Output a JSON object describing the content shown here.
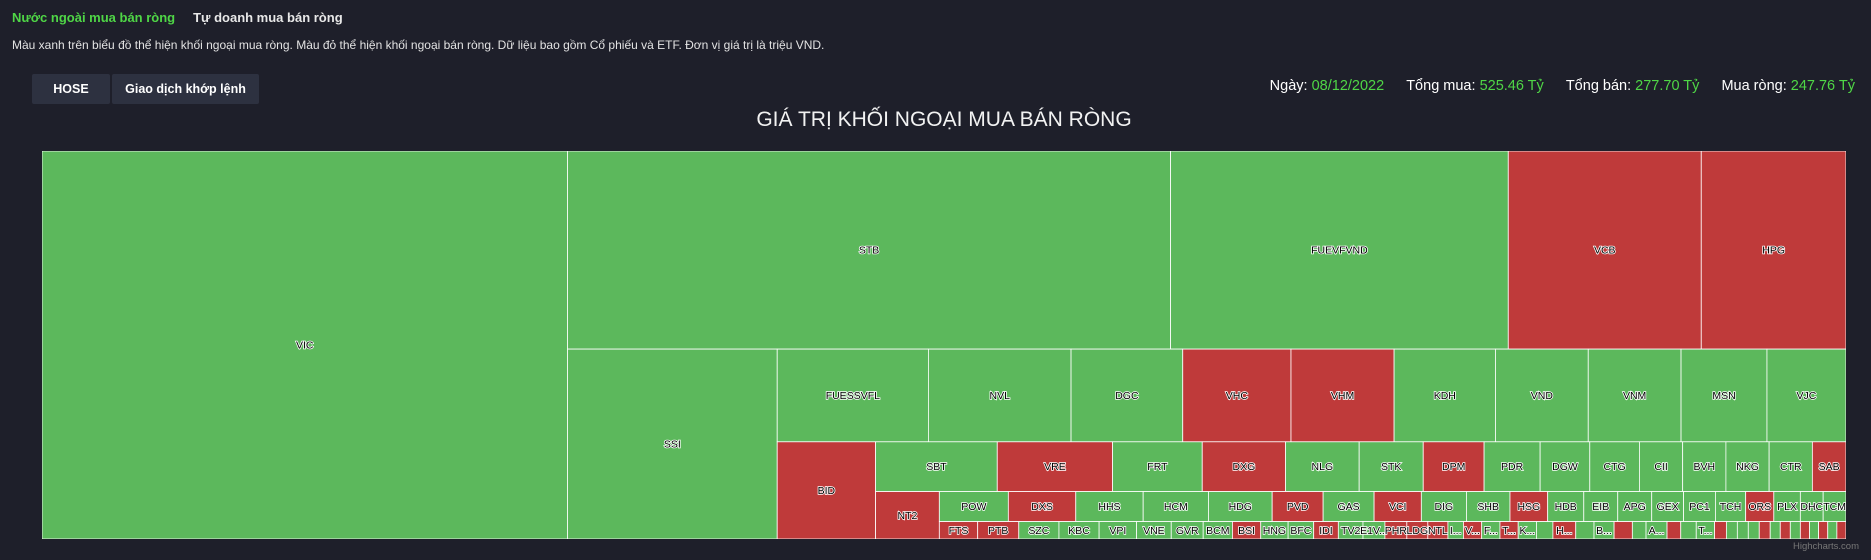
{
  "tabs": [
    "Nước ngoài mua bán ròng",
    "Tự doanh mua bán ròng"
  ],
  "description": "Màu xanh trên biểu đồ thể hiện khối ngoại mua ròng. Màu đỏ thể hiện khối ngoại bán ròng. Dữ liệu bao gồm Cổ phiếu và ETF. Đơn vị giá trị là triệu VND.",
  "buttons": {
    "exchange": "HOSE",
    "type": "Giao dịch khớp lệnh"
  },
  "stats": {
    "date_label": "Ngày:",
    "date": "08/12/2022",
    "buy_label": "Tổng mua:",
    "buy": "525.46 Tỷ",
    "sell_label": "Tổng bán:",
    "sell": "277.70 Tỷ",
    "net_label": "Mua ròng:",
    "net": "247.76 Tỷ"
  },
  "credit": "Highcharts.com",
  "colors": {
    "buy": "#5cb85c",
    "sell": "#bf3a3a"
  },
  "chart_data": {
    "type": "treemap",
    "title": "GIÁ TRỊ KHỐI NGOẠI MUA BÁN RÒNG",
    "groups": [
      {
        "items": [
          {
            "name": "VIC",
            "value": 128,
            "side": "buy"
          }
        ]
      },
      {
        "items": [
          {
            "name": "STB",
            "value": 75,
            "side": "buy"
          },
          {
            "name": "FUEVFVND",
            "value": 42,
            "side": "buy"
          },
          {
            "name": "VCB",
            "value": 24,
            "side": "sell"
          },
          {
            "name": "HPG",
            "value": 18,
            "side": "sell"
          }
        ]
      },
      {
        "items": [
          {
            "name": "SSI",
            "value": 25,
            "side": "buy"
          }
        ]
      },
      {
        "items": [
          {
            "name": "FUESSVFL",
            "value": 8.8,
            "side": "buy"
          },
          {
            "name": "NVL",
            "value": 8.3,
            "side": "buy"
          },
          {
            "name": "DGC",
            "value": 6.5,
            "side": "buy"
          },
          {
            "name": "VHC",
            "value": 6.3,
            "side": "sell"
          },
          {
            "name": "VHM",
            "value": 6.0,
            "side": "sell"
          },
          {
            "name": "KDH",
            "value": 5.9,
            "side": "buy"
          },
          {
            "name": "VND",
            "value": 5.4,
            "side": "buy"
          },
          {
            "name": "VNM",
            "value": 5.4,
            "side": "buy"
          },
          {
            "name": "MSN",
            "value": 5.0,
            "side": "buy"
          },
          {
            "name": "VJC",
            "value": 4.6,
            "side": "buy"
          }
        ]
      },
      {
        "items": [
          {
            "name": "BID",
            "value": 6.0,
            "side": "sell"
          }
        ]
      },
      {
        "items": [
          {
            "name": "SBT",
            "value": 3.8,
            "side": "buy"
          },
          {
            "name": "VRE",
            "value": 3.6,
            "side": "sell"
          },
          {
            "name": "FRT",
            "value": 2.8,
            "side": "buy"
          },
          {
            "name": "DXG",
            "value": 2.6,
            "side": "sell"
          },
          {
            "name": "NLG",
            "value": 2.3,
            "side": "buy"
          },
          {
            "name": "STK",
            "value": 2.0,
            "side": "buy"
          },
          {
            "name": "DPM",
            "value": 1.9,
            "side": "sell"
          },
          {
            "name": "PDR",
            "value": 1.75,
            "side": "buy"
          },
          {
            "name": "DGW",
            "value": 1.55,
            "side": "buy"
          },
          {
            "name": "CTG",
            "value": 1.55,
            "side": "buy"
          },
          {
            "name": "CII",
            "value": 1.35,
            "side": "buy"
          },
          {
            "name": "BVH",
            "value": 1.35,
            "side": "buy"
          },
          {
            "name": "NKG",
            "value": 1.35,
            "side": "buy"
          },
          {
            "name": "CTR",
            "value": 1.35,
            "side": "buy"
          },
          {
            "name": "SAB",
            "value": 1.05,
            "side": "sell"
          }
        ]
      },
      {
        "items": [
          {
            "name": "NT2",
            "value": 1.9,
            "side": "sell"
          }
        ]
      },
      {
        "items": [
          {
            "name": "POW",
            "value": 1.3,
            "side": "buy"
          },
          {
            "name": "DXS",
            "value": 1.27,
            "side": "sell"
          },
          {
            "name": "HHS",
            "value": 1.27,
            "side": "buy"
          },
          {
            "name": "HCM",
            "value": 1.23,
            "side": "buy"
          },
          {
            "name": "HDG",
            "value": 1.2,
            "side": "buy"
          },
          {
            "name": "PVD",
            "value": 0.96,
            "side": "sell"
          },
          {
            "name": "GAS",
            "value": 0.96,
            "side": "buy"
          },
          {
            "name": "VCI",
            "value": 0.89,
            "side": "sell"
          },
          {
            "name": "DIG",
            "value": 0.85,
            "side": "buy"
          },
          {
            "name": "SHB",
            "value": 0.82,
            "side": "buy"
          },
          {
            "name": "HSG",
            "value": 0.71,
            "side": "sell"
          },
          {
            "name": "HDB",
            "value": 0.68,
            "side": "buy"
          },
          {
            "name": "EIB",
            "value": 0.64,
            "side": "buy"
          },
          {
            "name": "APG",
            "value": 0.64,
            "side": "buy"
          },
          {
            "name": "GEX",
            "value": 0.6,
            "side": "buy"
          },
          {
            "name": "PC1",
            "value": 0.6,
            "side": "buy"
          },
          {
            "name": "TCH",
            "value": 0.57,
            "side": "buy"
          },
          {
            "name": "ORS",
            "value": 0.53,
            "side": "sell"
          },
          {
            "name": "PLX",
            "value": 0.5,
            "side": "buy"
          },
          {
            "name": "DHC",
            "value": 0.43,
            "side": "buy"
          },
          {
            "name": "TCM",
            "value": 0.43,
            "side": "buy"
          }
        ]
      },
      {
        "items": [
          {
            "name": "FTS",
            "value": 0.42,
            "side": "sell"
          },
          {
            "name": "PTB",
            "value": 0.45,
            "side": "sell"
          },
          {
            "name": "SZC",
            "value": 0.44,
            "side": "buy"
          },
          {
            "name": "KBC",
            "value": 0.44,
            "side": "buy"
          },
          {
            "name": "VPI",
            "value": 0.41,
            "side": "buy"
          },
          {
            "name": "VNE",
            "value": 0.38,
            "side": "buy"
          },
          {
            "name": "GVR",
            "value": 0.35,
            "side": "buy"
          },
          {
            "name": "BCM",
            "value": 0.32,
            "side": "buy"
          },
          {
            "name": "BSI",
            "value": 0.31,
            "side": "sell"
          },
          {
            "name": "HNG",
            "value": 0.3,
            "side": "buy"
          },
          {
            "name": "BFC",
            "value": 0.28,
            "side": "buy"
          },
          {
            "name": "IDI",
            "value": 0.27,
            "side": "sell"
          },
          {
            "name": "TV2",
            "value": 0.27,
            "side": "buy"
          },
          {
            "name": "E1V...",
            "value": 0.24,
            "side": "buy"
          },
          {
            "name": "PHR",
            "value": 0.24,
            "side": "sell"
          },
          {
            "name": "LDG",
            "value": 0.23,
            "side": "sell"
          },
          {
            "name": "NTL",
            "value": 0.22,
            "side": "sell"
          },
          {
            "name": "I...",
            "value": 0.17,
            "side": "buy"
          },
          {
            "name": "V...",
            "value": 0.2,
            "side": "sell"
          },
          {
            "name": "F...",
            "value": 0.2,
            "side": "buy"
          },
          {
            "name": "T...",
            "value": 0.2,
            "side": "sell"
          },
          {
            "name": "K...",
            "value": 0.2,
            "side": "buy"
          },
          {
            "name": "",
            "value": 0.18,
            "side": "buy"
          },
          {
            "name": "H...",
            "value": 0.25,
            "side": "sell"
          },
          {
            "name": "",
            "value": 0.2,
            "side": "buy"
          },
          {
            "name": "B...",
            "value": 0.22,
            "side": "buy"
          },
          {
            "name": "",
            "value": 0.2,
            "side": "sell"
          },
          {
            "name": "",
            "value": 0.15,
            "side": "buy"
          },
          {
            "name": "A...",
            "value": 0.23,
            "side": "buy"
          },
          {
            "name": "",
            "value": 0.15,
            "side": "sell"
          },
          {
            "name": "",
            "value": 0.17,
            "side": "buy"
          },
          {
            "name": "T...",
            "value": 0.2,
            "side": "buy"
          },
          {
            "name": "",
            "value": 0.13,
            "side": "sell"
          },
          {
            "name": "",
            "value": 0.12,
            "side": "buy"
          },
          {
            "name": "",
            "value": 0.12,
            "side": "buy"
          },
          {
            "name": "",
            "value": 0.12,
            "side": "buy"
          },
          {
            "name": "",
            "value": 0.12,
            "side": "sell"
          },
          {
            "name": "",
            "value": 0.11,
            "side": "buy"
          },
          {
            "name": "",
            "value": 0.11,
            "side": "sell"
          },
          {
            "name": "",
            "value": 0.11,
            "side": "buy"
          },
          {
            "name": "",
            "value": 0.1,
            "side": "sell"
          },
          {
            "name": "",
            "value": 0.1,
            "side": "buy"
          },
          {
            "name": "",
            "value": 0.1,
            "side": "sell"
          },
          {
            "name": "",
            "value": 0.1,
            "side": "buy"
          },
          {
            "name": "",
            "value": 0.1,
            "side": "sell"
          }
        ]
      }
    ]
  }
}
